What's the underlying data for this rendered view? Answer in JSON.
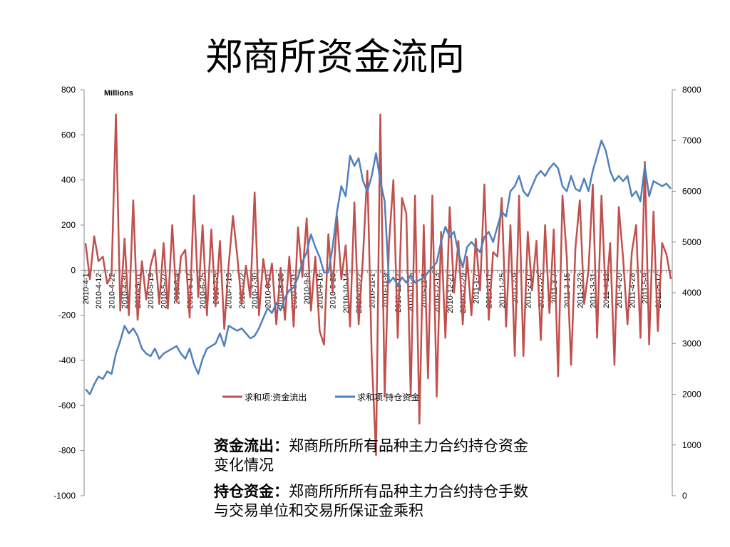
{
  "chart_data": {
    "type": "line",
    "title": "郑商所资金流向",
    "y_label": "Millions",
    "categories": [
      "2010-4-1",
      null,
      null,
      "2010-4-12",
      null,
      null,
      "2010-4-22",
      null,
      null,
      "2010-4-30",
      null,
      null,
      "2010-5-11",
      null,
      null,
      "2010-5-19",
      null,
      null,
      "2010-5-27",
      null,
      null,
      "2010-6-4",
      null,
      null,
      "2010-6-17",
      null,
      null,
      "2010-6-25",
      null,
      null,
      "2010-7-5",
      null,
      null,
      "2010-7-13",
      null,
      null,
      "2010-7-22",
      null,
      null,
      "2010-7-30",
      null,
      null,
      "2010-8-11",
      null,
      null,
      "2010-8-23",
      null,
      null,
      "2010-8-31",
      null,
      null,
      "2010-9-8",
      null,
      null,
      "2010-9-16",
      null,
      null,
      "2010-9-29",
      null,
      null,
      "2010-10-14",
      null,
      null,
      "2010-10-22",
      null,
      null,
      "2010-11-1",
      null,
      null,
      "2010-11-9",
      null,
      null,
      "2010-11-17",
      null,
      null,
      "2010-11-25",
      null,
      null,
      "2010-12-3",
      null,
      null,
      "2010-12-13",
      null,
      null,
      "2010-12-21",
      null,
      null,
      "2010-12-29",
      null,
      null,
      "2011-1-7",
      null,
      null,
      "2011-1-17",
      null,
      null,
      "2011-1-25",
      null,
      null,
      "2011-2-9",
      null,
      null,
      "2011-2-17",
      null,
      null,
      "2011-2-25",
      null,
      null,
      "2011-3-7",
      null,
      null,
      "2011-3-15",
      null,
      null,
      "2011-3-23",
      null,
      null,
      "2011-3-31",
      null,
      null,
      "2011-4-12",
      null,
      null,
      "2011-4-20",
      null,
      null,
      "2011-4-28",
      null,
      null,
      "2011-5-9",
      null,
      null,
      "2011-5-17",
      null,
      null,
      null
    ],
    "series": [
      {
        "name": "求和项:资金流出",
        "color": "#c0504d",
        "values": [
          120,
          -40,
          150,
          40,
          60,
          -60,
          -20,
          690,
          -180,
          140,
          -200,
          310,
          -220,
          40,
          -130,
          20,
          90,
          -150,
          120,
          -170,
          200,
          -140,
          60,
          90,
          -210,
          330,
          -120,
          200,
          -200,
          180,
          -160,
          130,
          -260,
          20,
          240,
          60,
          -150,
          20,
          -120,
          345,
          -200,
          50,
          -80,
          30,
          -240,
          10,
          -220,
          60,
          -250,
          190,
          -30,
          230,
          -180,
          60,
          -270,
          -330,
          160,
          -100,
          240,
          -40,
          110,
          -250,
          300,
          -240,
          60,
          440,
          -380,
          -820,
          690,
          -560,
          120,
          400,
          -300,
          320,
          250,
          -560,
          330,
          -680,
          200,
          -480,
          330,
          -560,
          170,
          -300,
          280,
          -100,
          130,
          -240,
          60,
          -200,
          140,
          -90,
          380,
          -220,
          80,
          60,
          320,
          -250,
          200,
          -380,
          330,
          -380,
          170,
          -90,
          130,
          -310,
          200,
          -190,
          180,
          -470,
          330,
          60,
          -420,
          100,
          310,
          -150,
          0,
          380,
          -300,
          330,
          -130,
          120,
          -420,
          280,
          50,
          -240,
          80,
          200,
          -300,
          480,
          -330,
          260,
          -270,
          120,
          70,
          -40
        ]
      },
      {
        "name": "求和项:持仓资金",
        "color": "#4f81bd",
        "axis": "y2",
        "values": [
          2100,
          2000,
          2200,
          2350,
          2300,
          2450,
          2400,
          2800,
          3050,
          3350,
          3200,
          3300,
          3150,
          2900,
          2800,
          2750,
          2900,
          2700,
          2800,
          2850,
          2900,
          2950,
          2800,
          2700,
          2900,
          2600,
          2400,
          2700,
          2900,
          2950,
          3000,
          3200,
          2950,
          3350,
          3300,
          3250,
          3300,
          3200,
          3100,
          3150,
          3300,
          3500,
          3700,
          3600,
          3800,
          3650,
          3900,
          4050,
          4100,
          4300,
          4600,
          4800,
          5150,
          4900,
          4700,
          4400,
          4400,
          4900,
          5600,
          6100,
          5900,
          6700,
          6500,
          6650,
          6200,
          6000,
          6300,
          6750,
          6200,
          5800,
          4200,
          4300,
          4150,
          4300,
          4200,
          4350,
          4200,
          4250,
          4300,
          4400,
          4500,
          4600,
          5000,
          5300,
          5100,
          5200,
          4800,
          4500,
          4900,
          5000,
          4900,
          4800,
          5100,
          5200,
          5000,
          5300,
          5600,
          5500,
          6000,
          6100,
          6300,
          6000,
          5900,
          6100,
          6300,
          6400,
          6300,
          6450,
          6550,
          6450,
          6100,
          6000,
          6300,
          6050,
          6000,
          6250,
          6000,
          6400,
          6700,
          7000,
          6800,
          6400,
          6200,
          6300,
          6200,
          6300,
          5900,
          6000,
          5800,
          6500,
          5900,
          6200,
          6150,
          6100,
          6150,
          6050
        ]
      }
    ],
    "ylim": [
      -1000,
      800
    ],
    "yticks": [
      -1000,
      -800,
      -600,
      -400,
      -200,
      0,
      200,
      400,
      600,
      800
    ],
    "y2lim": [
      0,
      8000
    ],
    "y2ticks": [
      0,
      1000,
      2000,
      3000,
      4000,
      5000,
      6000,
      7000,
      8000
    ],
    "legend": "bottom",
    "annotations": [
      {
        "label": "资金流出：",
        "text": "郑商所所所有品种主力合约持仓资金变化情况"
      },
      {
        "label": "持仓资金：",
        "text": "郑商所所所有品种主力合约持仓手数与交易单位和交易所保证金乘积"
      }
    ]
  }
}
